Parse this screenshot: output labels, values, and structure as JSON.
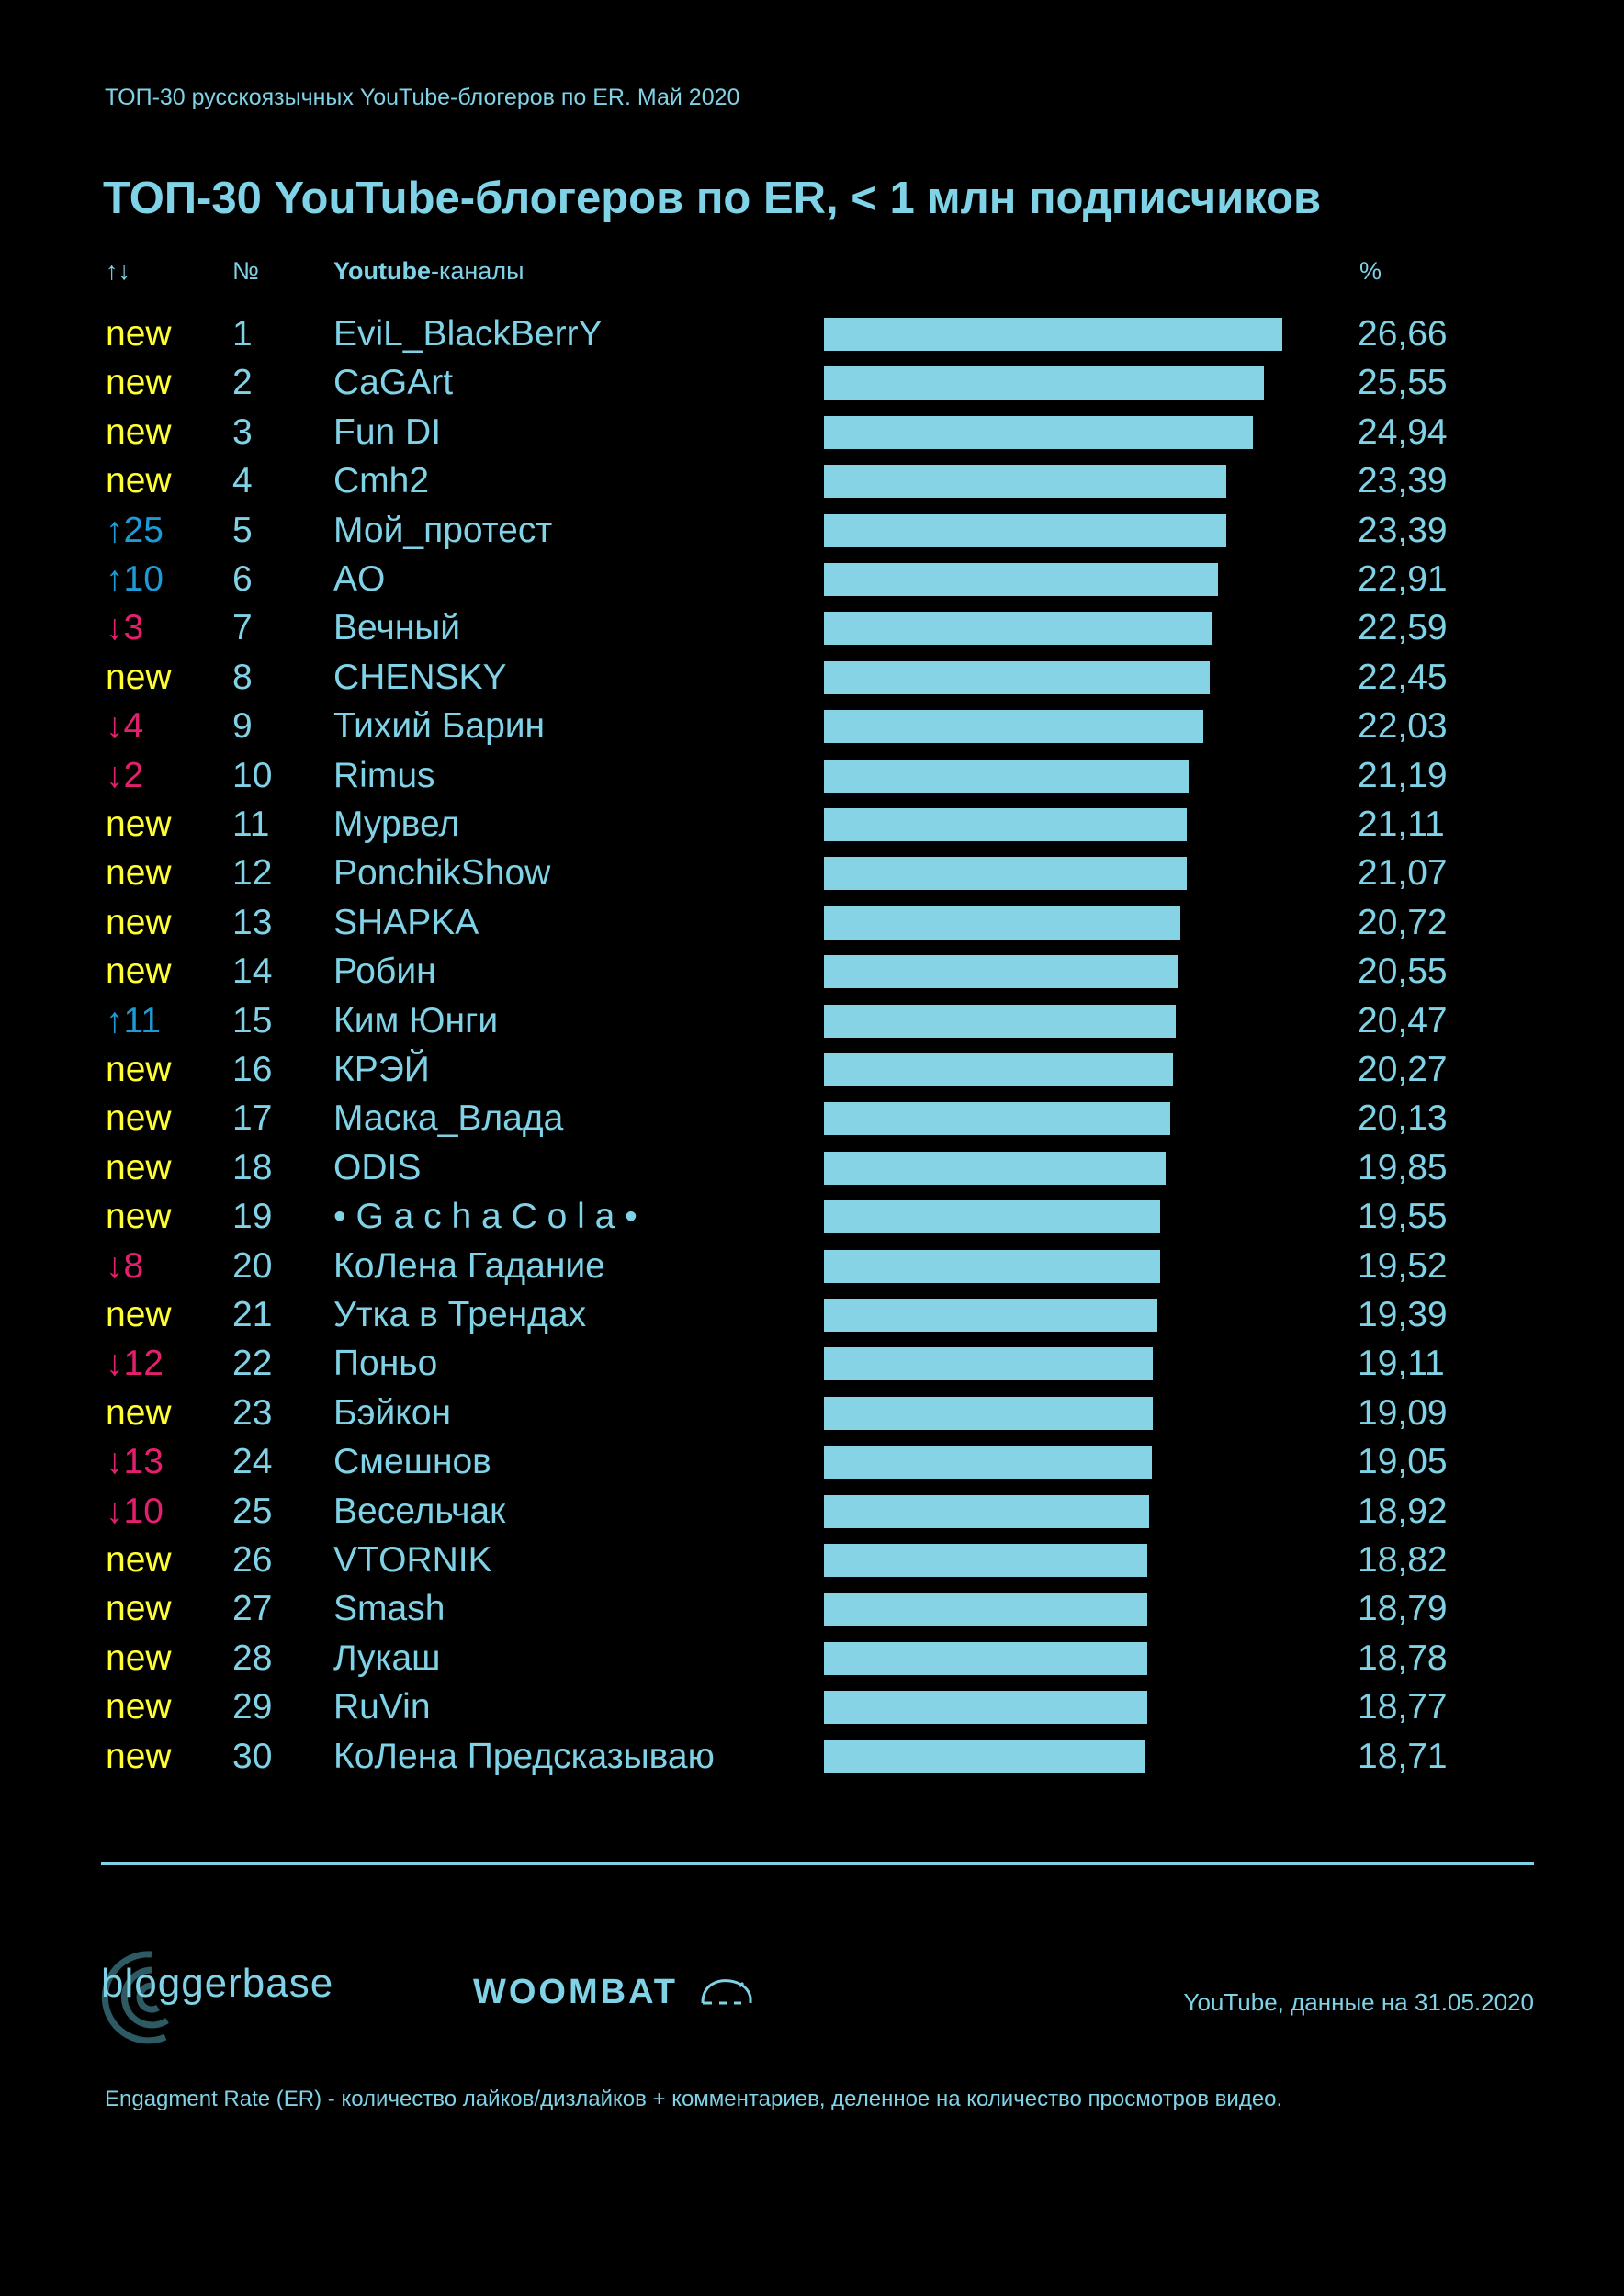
{
  "subtitle": "ТОП-30 русскоязычных YouTube-блогеров по ER. Май 2020",
  "title": "ТОП-30 YouTube-блогеров по ER, < 1 млн подписчиков",
  "headers": {
    "change": "↑↓",
    "rank": "№",
    "channel_bold": "Youtube",
    "channel_rest": "-каналы",
    "value": "%"
  },
  "colors": {
    "text": "#80d2e6",
    "bar": "#86d3e6",
    "new": "#ffff33",
    "up": "#1e9ad6",
    "down": "#e3206e",
    "background": "#000000"
  },
  "chart_data": {
    "type": "bar",
    "orientation": "horizontal",
    "title": "ТОП-30 YouTube-блогеров по ER, < 1 млн подписчиков",
    "unit": "%",
    "rows": [
      {
        "change": "new",
        "rank": "1",
        "name": "EviL_BlackBerrY",
        "value": 26.66,
        "label": "26,66"
      },
      {
        "change": "new",
        "rank": "2",
        "name": "CaGArt",
        "value": 25.55,
        "label": "25,55"
      },
      {
        "change": "new",
        "rank": "3",
        "name": "Fun DI",
        "value": 24.94,
        "label": "24,94"
      },
      {
        "change": "new",
        "rank": "4",
        "name": "Cmh2",
        "value": 23.39,
        "label": "23,39"
      },
      {
        "change": "↑25",
        "rank": "5",
        "name": "Мой_протест",
        "value": 23.39,
        "label": "23,39"
      },
      {
        "change": "↑10",
        "rank": "6",
        "name": "AO",
        "value": 22.91,
        "label": "22,91"
      },
      {
        "change": "↓3",
        "rank": "7",
        "name": "Вечный",
        "value": 22.59,
        "label": "22,59"
      },
      {
        "change": "new",
        "rank": "8",
        "name": "CHENSKY",
        "value": 22.45,
        "label": "22,45"
      },
      {
        "change": "↓4",
        "rank": "9",
        "name": "Тихий Барин",
        "value": 22.03,
        "label": "22,03"
      },
      {
        "change": "↓2",
        "rank": "10",
        "name": "Rimus",
        "value": 21.19,
        "label": "21,19"
      },
      {
        "change": "new",
        "rank": "11",
        "name": "Мурвел",
        "value": 21.11,
        "label": "21,11"
      },
      {
        "change": "new",
        "rank": "12",
        "name": "PonchikShow",
        "value": 21.07,
        "label": "21,07"
      },
      {
        "change": "new",
        "rank": "13",
        "name": "SHAPKA",
        "value": 20.72,
        "label": "20,72"
      },
      {
        "change": "new",
        "rank": "14",
        "name": "Робин",
        "value": 20.55,
        "label": "20,55"
      },
      {
        "change": "↑11",
        "rank": "15",
        "name": "Ким Юнги",
        "value": 20.47,
        "label": "20,47"
      },
      {
        "change": "new",
        "rank": "16",
        "name": "КРЭЙ",
        "value": 20.27,
        "label": "20,27"
      },
      {
        "change": "new",
        "rank": "17",
        "name": "Маска_Влада",
        "value": 20.13,
        "label": "20,13"
      },
      {
        "change": "new",
        "rank": "18",
        "name": "ODIS",
        "value": 19.85,
        "label": "19,85"
      },
      {
        "change": "new",
        "rank": "19",
        "name": "• G a c h a C o l a •",
        "value": 19.55,
        "label": "19,55"
      },
      {
        "change": "↓8",
        "rank": "20",
        "name": "КоЛена Гадание",
        "value": 19.52,
        "label": "19,52"
      },
      {
        "change": "new",
        "rank": "21",
        "name": "Утка в Трендах",
        "value": 19.39,
        "label": "19,39"
      },
      {
        "change": "↓12",
        "rank": "22",
        "name": "Поньо",
        "value": 19.11,
        "label": "19,11"
      },
      {
        "change": "new",
        "rank": "23",
        "name": "Бэйкон",
        "value": 19.09,
        "label": "19,09"
      },
      {
        "change": "↓13",
        "rank": "24",
        "name": "Смешнов",
        "value": 19.05,
        "label": "19,05"
      },
      {
        "change": "↓10",
        "rank": "25",
        "name": "Весельчак",
        "value": 18.92,
        "label": "18,92"
      },
      {
        "change": "new",
        "rank": "26",
        "name": "VTORNIK",
        "value": 18.82,
        "label": "18,82"
      },
      {
        "change": "new",
        "rank": "27",
        "name": "Smash",
        "value": 18.79,
        "label": "18,79"
      },
      {
        "change": "new",
        "rank": "28",
        "name": "Лукаш",
        "value": 18.78,
        "label": "18,78"
      },
      {
        "change": "new",
        "rank": "29",
        "name": "RuVin",
        "value": 18.77,
        "label": "18,77"
      },
      {
        "change": "new",
        "rank": "30",
        "name": "КоЛена Предсказываю",
        "value": 18.71,
        "label": "18,71"
      }
    ]
  },
  "footer": {
    "logo_bloggerbase": "bloggerbase",
    "logo_woombat": "WOOMBAT",
    "source": "YouTube, данные на 31.05.2020",
    "note": "Engagment Rate (ER) - количество лайков/дизлайков + комментариев, деленное на количество просмотров видео."
  }
}
